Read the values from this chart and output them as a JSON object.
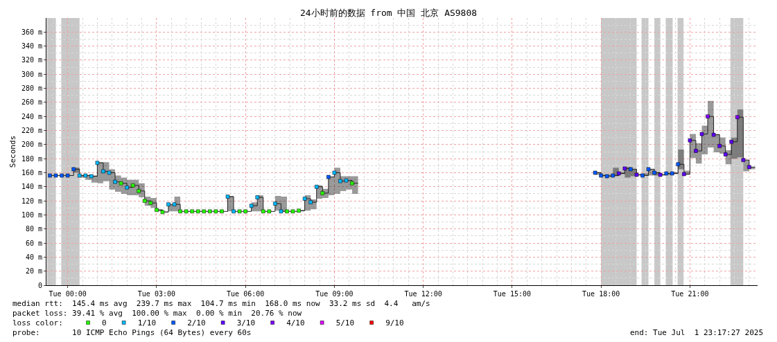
{
  "chart_data": {
    "type": "step",
    "title": "24小时前的数据 from 中国 北京 AS9808",
    "ylabel": "Seconds",
    "xlim": [
      "2025-06-30T23:17",
      "2025-07-01T23:17"
    ],
    "xticks": [
      {
        "value": "2025-07-01T00:00",
        "label": "Tue 00:00"
      },
      {
        "value": "2025-07-01T03:00",
        "label": "Tue 03:00"
      },
      {
        "value": "2025-07-01T06:00",
        "label": "Tue 06:00"
      },
      {
        "value": "2025-07-01T09:00",
        "label": "Tue 09:00"
      },
      {
        "value": "2025-07-01T12:00",
        "label": "Tue 12:00"
      },
      {
        "value": "2025-07-01T15:00",
        "label": "Tue 15:00"
      },
      {
        "value": "2025-07-01T18:00",
        "label": "Tue 18:00"
      },
      {
        "value": "2025-07-01T21:00",
        "label": "Tue 21:00"
      }
    ],
    "ylim": [
      0,
      380
    ],
    "yticks": [
      0,
      {
        "value": 20,
        "label": "20 m"
      },
      {
        "value": 40,
        "label": "40 m"
      },
      {
        "value": 60,
        "label": "60 m"
      },
      {
        "value": 80,
        "label": "80 m"
      },
      {
        "value": 100,
        "label": "100 m"
      },
      {
        "value": 120,
        "label": "120 m"
      },
      {
        "value": 140,
        "label": "140 m"
      },
      {
        "value": 160,
        "label": "160 m"
      },
      {
        "value": 180,
        "label": "180 m"
      },
      {
        "value": 200,
        "label": "200 m"
      },
      {
        "value": 220,
        "label": "220 m"
      },
      {
        "value": 240,
        "label": "240 m"
      },
      {
        "value": 260,
        "label": "260 m"
      },
      {
        "value": 280,
        "label": "280 m"
      },
      {
        "value": 300,
        "label": "300 m"
      },
      {
        "value": 320,
        "label": "320 m"
      },
      {
        "value": 340,
        "label": "340 m"
      },
      {
        "value": 360,
        "label": "360 m"
      }
    ],
    "grid": true,
    "legend": "bottom left",
    "series": [
      {
        "color": "#202020",
        "line_style": "solid",
        "x": [
          "2025-06-30T23:24",
          "2025-06-30T23:36",
          "2025-06-30T23:48",
          "2025-07-01T00:00",
          "2025-07-01T00:12",
          "2025-07-01T00:24",
          "2025-07-01T00:36",
          "2025-07-01T00:48",
          "2025-07-01T01:00",
          "2025-07-01T01:12",
          "2025-07-01T01:24",
          "2025-07-01T01:36",
          "2025-07-01T01:48",
          "2025-07-01T02:00",
          "2025-07-01T02:12",
          "2025-07-01T02:24",
          "2025-07-01T02:36",
          "2025-07-01T02:48",
          "2025-07-01T03:00",
          "2025-07-01T03:12",
          "2025-07-01T03:24",
          "2025-07-01T03:36",
          "2025-07-01T03:48",
          "2025-07-01T04:00",
          "2025-07-01T04:12",
          "2025-07-01T04:24",
          "2025-07-01T04:36",
          "2025-07-01T04:48",
          "2025-07-01T05:00",
          "2025-07-01T05:12",
          "2025-07-01T05:24",
          "2025-07-01T05:36",
          "2025-07-01T05:48",
          "2025-07-01T06:00",
          "2025-07-01T06:12",
          "2025-07-01T06:24",
          "2025-07-01T06:36",
          "2025-07-01T06:48",
          "2025-07-01T07:00",
          "2025-07-01T07:12",
          "2025-07-01T07:24",
          "2025-07-01T07:36",
          "2025-07-01T07:48",
          "2025-07-01T08:00",
          "2025-07-01T08:12",
          "2025-07-01T08:24",
          "2025-07-01T08:36",
          "2025-07-01T08:48",
          "2025-07-01T09:00",
          "2025-07-01T09:12",
          "2025-07-01T09:24",
          "2025-07-01T09:36",
          "2025-07-01T09:48",
          "2025-07-01T10:00",
          "2025-07-01T17:48",
          "2025-07-01T18:00",
          "2025-07-01T18:12",
          "2025-07-01T18:24",
          "2025-07-01T18:36",
          "2025-07-01T18:48",
          "2025-07-01T19:00",
          "2025-07-01T19:12",
          "2025-07-01T19:24",
          "2025-07-01T19:36",
          "2025-07-01T19:48",
          "2025-07-01T20:00",
          "2025-07-01T20:12",
          "2025-07-01T20:24",
          "2025-07-01T20:36",
          "2025-07-01T20:48",
          "2025-07-01T21:00",
          "2025-07-01T21:12",
          "2025-07-01T21:24",
          "2025-07-01T21:36",
          "2025-07-01T21:48",
          "2025-07-01T22:00",
          "2025-07-01T22:12",
          "2025-07-01T22:24",
          "2025-07-01T22:36",
          "2025-07-01T22:48",
          "2025-07-01T23:00",
          "2025-07-01T23:12"
        ],
        "values": [
          156,
          156,
          156,
          156,
          165,
          156,
          156,
          155,
          174,
          162,
          160,
          147,
          145,
          139,
          142,
          134,
          120,
          117,
          107,
          104,
          115,
          115,
          105,
          105,
          105,
          105,
          105,
          105,
          105,
          105,
          126,
          105,
          105,
          105,
          113,
          125,
          105,
          105,
          116,
          105,
          105,
          105,
          106,
          123,
          118,
          140,
          131,
          154,
          160,
          148,
          149,
          145,
          145,
          null,
          160,
          156,
          155,
          156,
          159,
          166,
          165,
          157,
          156,
          165,
          160,
          157,
          159,
          159,
          172,
          158,
          206,
          191,
          215,
          240,
          214,
          198,
          186,
          204,
          239,
          178,
          168,
          168
        ],
        "lower": [
          156,
          156,
          156,
          156,
          160,
          153,
          150,
          146,
          145,
          148,
          136,
          133,
          130,
          128,
          128,
          125,
          113,
          110,
          105,
          104,
          105,
          105,
          105,
          105,
          105,
          105,
          105,
          105,
          105,
          105,
          105,
          105,
          105,
          105,
          105,
          105,
          105,
          105,
          106,
          105,
          105,
          105,
          105,
          106,
          108,
          123,
          124,
          128,
          130,
          134,
          136,
          130,
          130,
          null,
          157,
          155,
          155,
          155,
          158,
          153,
          155,
          156,
          156,
          156,
          156,
          156,
          157,
          158,
          165,
          157,
          181,
          173,
          186,
          196,
          189,
          187,
          172,
          180,
          182,
          162,
          165,
          165
        ],
        "upper": [
          156,
          156,
          156,
          156,
          167,
          157,
          157,
          156,
          175,
          175,
          165,
          156,
          153,
          150,
          150,
          145,
          126,
          124,
          108,
          105,
          115,
          126,
          105,
          105,
          105,
          105,
          105,
          105,
          105,
          105,
          127,
          105,
          105,
          105,
          118,
          128,
          105,
          105,
          127,
          126,
          105,
          105,
          107,
          128,
          122,
          142,
          137,
          154,
          167,
          155,
          155,
          155,
          155,
          null,
          161,
          157,
          157,
          167,
          161,
          168,
          165,
          158,
          159,
          165,
          161,
          158,
          160,
          161,
          193,
          163,
          215,
          202,
          227,
          262,
          215,
          210,
          192,
          210,
          250,
          178,
          168,
          168
        ]
      },
      {
        "type": "scatter",
        "marker": "square",
        "name": "0",
        "color": "#26ff00",
        "x": [
          "2025-07-01T01:48",
          "2025-07-01T02:12",
          "2025-07-01T02:24",
          "2025-07-01T02:36",
          "2025-07-01T02:48",
          "2025-07-01T03:00",
          "2025-07-01T03:12",
          "2025-07-01T03:48",
          "2025-07-01T04:00",
          "2025-07-01T04:12",
          "2025-07-01T04:24",
          "2025-07-01T04:36",
          "2025-07-01T04:48",
          "2025-07-01T05:00",
          "2025-07-01T05:12",
          "2025-07-01T05:48",
          "2025-07-01T06:00",
          "2025-07-01T06:36",
          "2025-07-01T06:48",
          "2025-07-01T07:24",
          "2025-07-01T07:36",
          "2025-07-01T07:48",
          "2025-07-01T08:36",
          "2025-07-01T09:36"
        ],
        "values": [
          145,
          142,
          134,
          120,
          117,
          107,
          104,
          105,
          105,
          105,
          105,
          105,
          105,
          105,
          105,
          105,
          105,
          105,
          105,
          105,
          105,
          106,
          131,
          145
        ]
      },
      {
        "type": "scatter",
        "marker": "square",
        "name": "1/10",
        "color": "#00b8ff",
        "x": [
          "2025-07-01T00:24",
          "2025-07-01T00:36",
          "2025-07-01T00:48",
          "2025-07-01T01:00",
          "2025-07-01T01:12",
          "2025-07-01T01:24",
          "2025-07-01T01:36",
          "2025-07-01T02:00",
          "2025-07-01T03:24",
          "2025-07-01T03:36",
          "2025-07-01T05:24",
          "2025-07-01T05:36",
          "2025-07-01T06:12",
          "2025-07-01T06:24",
          "2025-07-01T07:00",
          "2025-07-01T07:12",
          "2025-07-01T08:00",
          "2025-07-01T08:12",
          "2025-07-01T08:24",
          "2025-07-01T09:00",
          "2025-07-01T09:12",
          "2025-07-01T09:24"
        ],
        "values": [
          156,
          156,
          155,
          174,
          162,
          160,
          147,
          139,
          115,
          115,
          126,
          105,
          113,
          125,
          116,
          105,
          123,
          118,
          140,
          160,
          148,
          149
        ]
      },
      {
        "type": "scatter",
        "marker": "square",
        "name": "2/10",
        "color": "#0059ff",
        "x": [
          "2025-06-30T23:24",
          "2025-06-30T23:36",
          "2025-06-30T23:48",
          "2025-07-01T00:00",
          "2025-07-01T00:12",
          "2025-07-01T08:48",
          "2025-07-01T17:48",
          "2025-07-01T18:00",
          "2025-07-01T18:12",
          "2025-07-01T18:24",
          "2025-07-01T19:00",
          "2025-07-01T19:24",
          "2025-07-01T19:36",
          "2025-07-01T19:48",
          "2025-07-01T20:12",
          "2025-07-01T20:24",
          "2025-07-01T20:36"
        ],
        "values": [
          156,
          156,
          156,
          156,
          165,
          154,
          160,
          156,
          155,
          156,
          165,
          156,
          165,
          160,
          159,
          159,
          172
        ]
      },
      {
        "type": "scatter",
        "marker": "square",
        "name": "3/10",
        "color": "#5e00ff",
        "x": [
          "2025-07-01T18:36",
          "2025-07-01T18:48",
          "2025-07-01T19:12",
          "2025-07-01T20:00",
          "2025-07-01T20:48",
          "2025-07-01T21:00",
          "2025-07-01T21:12",
          "2025-07-01T21:24",
          "2025-07-01T21:48",
          "2025-07-01T22:00",
          "2025-07-01T22:12",
          "2025-07-01T22:24",
          "2025-07-01T22:48",
          "2025-07-01T23:00"
        ],
        "values": [
          159,
          166,
          157,
          157,
          158,
          206,
          191,
          215,
          214,
          198,
          186,
          204,
          178,
          168
        ]
      },
      {
        "type": "scatter",
        "marker": "square",
        "name": "4/10",
        "color": "#7e00ff",
        "x": [
          "2025-07-01T21:36",
          "2025-07-01T22:36"
        ],
        "values": [
          240,
          239
        ]
      },
      {
        "type": "scatter",
        "marker": "square",
        "name": "5/10",
        "color": "#dd00ff",
        "values": [
          null
        ]
      },
      {
        "type": "scatter",
        "marker": "square",
        "name": "9/10",
        "color": "#ff0000",
        "values": [
          null
        ]
      }
    ],
    "bands": [
      {
        "axis": "x",
        "from": "2025-06-30T23:18",
        "to": "2025-06-30T23:36",
        "color": "#c8c8c8"
      },
      {
        "axis": "x",
        "from": "2025-06-30T23:47",
        "to": "2025-07-01T00:24",
        "color": "#c8c8c8"
      },
      {
        "axis": "x",
        "from": "2025-07-01T18:00",
        "to": "2025-07-01T19:12",
        "color": "#c8c8c8"
      },
      {
        "axis": "x",
        "from": "2025-07-01T19:22",
        "to": "2025-07-01T19:36",
        "color": "#c8c8c8"
      },
      {
        "axis": "x",
        "from": "2025-07-01T19:48",
        "to": "2025-07-01T20:00",
        "color": "#c8c8c8"
      },
      {
        "axis": "x",
        "from": "2025-07-01T20:11",
        "to": "2025-07-01T20:25",
        "color": "#c8c8c8"
      },
      {
        "axis": "x",
        "from": "2025-07-01T20:35",
        "to": "2025-07-01T20:47",
        "color": "#c8c8c8"
      },
      {
        "axis": "x",
        "from": "2025-07-01T22:22",
        "to": "2025-07-01T22:48",
        "color": "#c8c8c8"
      }
    ],
    "annotations": [
      "median rtt:  145.4 ms avg  239.7 ms max  104.7 ms min  168.0 ms now  33.2 ms sd  4.4   am/s",
      "packet loss: 39.41 % avg  100.00 % max  0.00 % min  20.76 % now",
      "loss color:",
      "probe:       10 ICMP Echo Pings (64 Bytes) every 60s",
      "end: Tue Jul  1 23:17:27 2025"
    ]
  }
}
